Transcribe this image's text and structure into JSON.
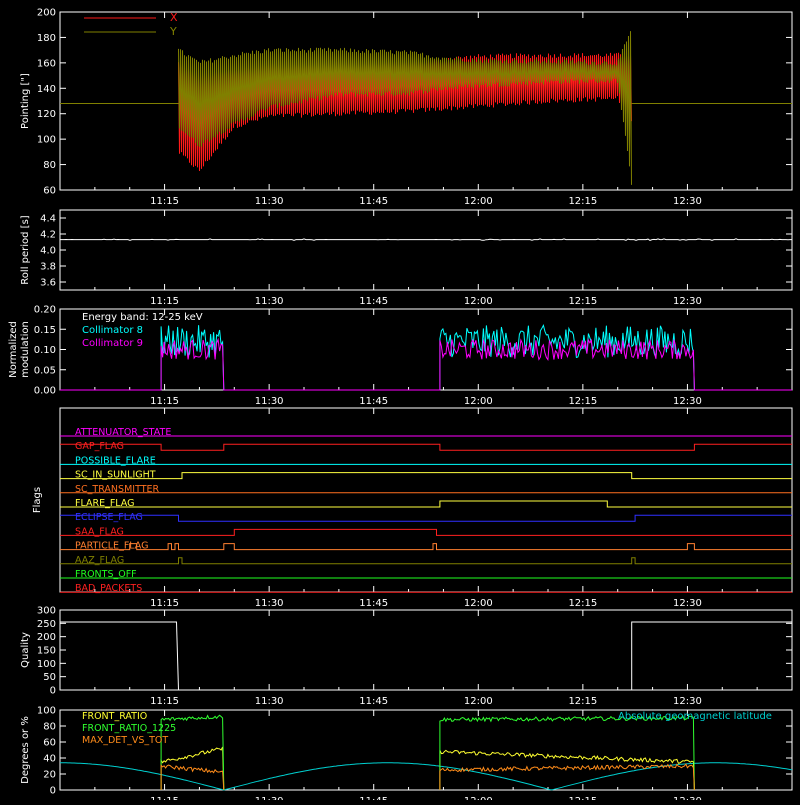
{
  "colors": {
    "background": "#000000",
    "axis": "#ffffff",
    "x_series": "#ff1a1a",
    "y_series": "#808000",
    "collimator8": "#00ffff",
    "collimator9": "#ff00ff",
    "latitude": "#00d0d0",
    "front_ratio": "#ffff30",
    "front_ratio_12_25": "#30ff30",
    "max_det": "#ff8c1a"
  },
  "time_axis": {
    "start": "11:00",
    "end": "12:45",
    "tick_labels": [
      "11:15",
      "11:30",
      "11:45",
      "12:00",
      "12:15",
      "12:30"
    ],
    "tick_minutes": [
      15,
      30,
      45,
      60,
      75,
      90
    ],
    "range_minutes": [
      0,
      105
    ]
  },
  "chart_data": [
    {
      "id": "pointing",
      "type": "line",
      "ylabel": "Pointing [\"]",
      "ylim": [
        60,
        200
      ],
      "yticks": [
        60,
        80,
        100,
        120,
        140,
        160,
        180,
        200
      ],
      "legend": [
        "X",
        "Y"
      ],
      "series": [
        {
          "name": "X",
          "band_minutes": [
            17,
            20,
            25,
            30,
            40,
            50,
            55,
            60,
            70,
            80,
            82
          ],
          "band_high": [
            160,
            150,
            155,
            158,
            158,
            160,
            163,
            165,
            166,
            166,
            168
          ],
          "band_low": [
            90,
            75,
            110,
            118,
            120,
            122,
            124,
            126,
            130,
            132,
            116
          ],
          "flat_value": 128
        },
        {
          "name": "Y",
          "band_minutes": [
            17,
            20,
            25,
            30,
            40,
            50,
            55,
            60,
            70,
            80,
            82
          ],
          "band_high": [
            170,
            160,
            166,
            170,
            170,
            168,
            164,
            162,
            161,
            160,
            186
          ],
          "band_low": [
            110,
            95,
            112,
            125,
            135,
            136,
            140,
            142,
            145,
            146,
            65
          ],
          "flat_value": 128
        }
      ]
    },
    {
      "id": "roll",
      "type": "line",
      "ylabel": "Roll period [s]",
      "ylim": [
        3.5,
        4.5
      ],
      "yticks": [
        3.6,
        3.8,
        4.0,
        4.2,
        4.4
      ],
      "ytick_labels": [
        "3.6",
        "3.8",
        "4.0",
        "4.2",
        "4.4"
      ],
      "series": [
        {
          "value": 4.13
        }
      ]
    },
    {
      "id": "modulation",
      "type": "line",
      "ylabel_lines": [
        "Normalized",
        "modulation"
      ],
      "ylim": [
        0,
        0.2
      ],
      "yticks": [
        0,
        0.05,
        0.1,
        0.15,
        0.2
      ],
      "ytick_labels": [
        "0.00",
        "0.05",
        "0.10",
        "0.15",
        "0.20"
      ],
      "annotation": "Energy band: 12-25 keV",
      "legend": [
        "Collimator 8",
        "Collimator 9"
      ],
      "segments_minutes": [
        [
          14.5,
          23.5
        ],
        [
          54.5,
          91
        ]
      ],
      "series": [
        {
          "name": "Collimator 8",
          "mean": 0.12,
          "spread": 0.04
        },
        {
          "name": "Collimator 9",
          "mean": 0.1,
          "spread": 0.025
        }
      ]
    },
    {
      "id": "flags",
      "type": "step",
      "ylabel": "Flags",
      "flags": [
        {
          "name": "ATTENUATOR_STATE",
          "color": "#ff00ff",
          "steps": [
            [
              0,
              0
            ],
            [
              105,
              0
            ]
          ]
        },
        {
          "name": "GAP_FLAG",
          "color": "#ff2020",
          "steps": [
            [
              0,
              1
            ],
            [
              14.5,
              0
            ],
            [
              23.5,
              1
            ],
            [
              54.5,
              0
            ],
            [
              91,
              1
            ]
          ]
        },
        {
          "name": "POSSIBLE_FLARE",
          "color": "#00ffff",
          "steps": [
            [
              0,
              0
            ]
          ]
        },
        {
          "name": "SC_IN_SUNLIGHT",
          "color": "#ffff40",
          "steps": [
            [
              0,
              0
            ],
            [
              17.5,
              1
            ],
            [
              82,
              0
            ]
          ]
        },
        {
          "name": "SC_TRANSMITTER",
          "color": "#ff7020",
          "steps": [
            [
              0,
              0
            ]
          ]
        },
        {
          "name": "FLARE_FLAG",
          "color": "#ffff40",
          "steps": [
            [
              0,
              0
            ],
            [
              54.5,
              1
            ],
            [
              78.5,
              0
            ]
          ]
        },
        {
          "name": "ECLIPSE_FLAG",
          "color": "#3030ff",
          "steps": [
            [
              0,
              1
            ],
            [
              17,
              0
            ],
            [
              82.5,
              1
            ]
          ]
        },
        {
          "name": "SAA_FLAG",
          "color": "#ff2020",
          "steps": [
            [
              0,
              0
            ],
            [
              25,
              1
            ],
            [
              54,
              0
            ]
          ]
        },
        {
          "name": "PARTICLE_FLAG",
          "color": "#ff8030",
          "steps": [
            [
              0,
              0
            ],
            [
              10,
              1
            ],
            [
              11,
              0
            ],
            [
              15.5,
              1
            ],
            [
              16,
              0
            ],
            [
              16.5,
              1
            ],
            [
              17,
              0
            ],
            [
              23.5,
              1
            ],
            [
              25,
              0
            ],
            [
              53.5,
              1
            ],
            [
              54,
              0
            ],
            [
              90,
              1
            ],
            [
              91,
              0
            ]
          ]
        },
        {
          "name": "AAZ_FLAG",
          "color": "#808000",
          "steps": [
            [
              0,
              0
            ],
            [
              17,
              1
            ],
            [
              17.5,
              0
            ],
            [
              82,
              1
            ],
            [
              82.5,
              0
            ]
          ]
        },
        {
          "name": "FRONTS_OFF",
          "color": "#20ff20",
          "steps": [
            [
              0,
              0
            ]
          ]
        },
        {
          "name": "BAD_PACKETS",
          "color": "#ff2020",
          "steps": [
            [
              0,
              0
            ]
          ]
        }
      ]
    },
    {
      "id": "quality",
      "type": "line",
      "ylabel": "Quality",
      "ylim": [
        0,
        300
      ],
      "yticks": [
        0,
        50,
        100,
        150,
        200,
        250,
        300
      ],
      "ytick_labels": [
        "0",
        "50",
        "100",
        "150",
        "200",
        "250",
        "300"
      ],
      "series": [
        {
          "high": 255,
          "low": 0,
          "drop_minutes": [
            17,
            82
          ]
        }
      ]
    },
    {
      "id": "ratios",
      "type": "line",
      "ylabel": "Degrees or %",
      "ylim": [
        0,
        100
      ],
      "yticks": [
        0,
        20,
        40,
        60,
        80,
        100
      ],
      "ytick_labels": [
        "0",
        "20",
        "40",
        "60",
        "80",
        "100"
      ],
      "legend": [
        "FRONT_RATIO",
        "FRONT_RATIO_1225",
        "MAX_DET_VS_TOT"
      ],
      "annotation": "Absolute geomagnetic latitude",
      "segments_minutes": [
        [
          14.5,
          23.5
        ],
        [
          54.5,
          91
        ]
      ],
      "series": [
        {
          "name": "FRONT_RATIO",
          "segment_means": [
            [
              35,
              52
            ],
            [
              48,
              35
            ]
          ]
        },
        {
          "name": "FRONT_RATIO_1225",
          "segment_means": [
            [
              88,
              92
            ],
            [
              88,
              90
            ]
          ]
        },
        {
          "name": "MAX_DET_VS_TOT",
          "segment_means": [
            [
              30,
              22
            ],
            [
              25,
              30
            ]
          ]
        },
        {
          "name": "Absolute geomagnetic latitude",
          "peaks_minutes": [
            0,
            47,
            105
          ],
          "peak_value": 34,
          "zero_minutes": [
            24,
            71
          ]
        }
      ]
    }
  ]
}
